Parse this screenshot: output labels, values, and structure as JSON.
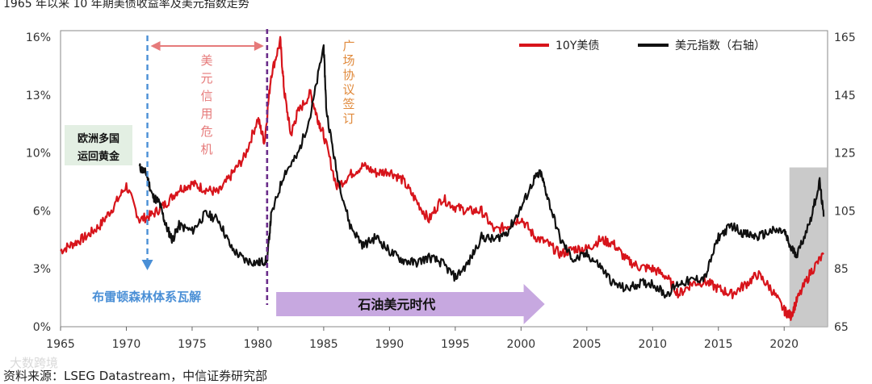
{
  "title": "1965 年以来 10 年期美债收益率及美元指数走势",
  "source": "资料来源：LSEG Datastream，中信证券研究部",
  "watermark": "大数跨境",
  "colors": {
    "us10y": "#d7141b",
    "dxy": "#111111",
    "blue": "#4a8fd6",
    "purple": "#6a2c8a",
    "pink": "#e67a7a",
    "orange": "#e08a3c",
    "arrow": "#c7a8e0",
    "shade": "#bdbdbd",
    "box": "#e3efe3"
  },
  "chart_data": {
    "type": "line",
    "x_ticks": [
      1965,
      1970,
      1975,
      1980,
      1985,
      1990,
      1995,
      2000,
      2005,
      2010,
      2015,
      2020
    ],
    "y_left": {
      "lim": [
        0,
        16
      ],
      "ticks": [
        "0%",
        "3%",
        "6%",
        "10%",
        "13%",
        "16%"
      ],
      "tick_values": [
        0,
        3.2,
        6.4,
        9.6,
        12.8,
        16
      ]
    },
    "y_right": {
      "lim": [
        65,
        165
      ],
      "ticks": [
        65,
        85,
        105,
        125,
        145,
        165
      ]
    },
    "legend": "top-right",
    "series": [
      {
        "name": "10Y美债",
        "axis": "left",
        "x": [
          1965,
          1966,
          1967,
          1968,
          1969,
          1970,
          1971,
          1972,
          1973,
          1974,
          1975,
          1976,
          1977,
          1978,
          1979,
          1980,
          1980.5,
          1981,
          1981.7,
          1982,
          1982.5,
          1983,
          1984,
          1984.5,
          1985,
          1986,
          1987,
          1988,
          1989,
          1990,
          1991,
          1992,
          1993,
          1994,
          1995,
          1996,
          1997,
          1998,
          1999,
          2000,
          2001,
          2002,
          2003,
          2004,
          2005,
          2006,
          2007,
          2008,
          2009,
          2010,
          2011,
          2012,
          2013,
          2014,
          2015,
          2016,
          2017,
          2018,
          2019,
          2020,
          2020.5,
          2021,
          2022,
          2023
        ],
        "y": [
          4.2,
          4.6,
          5.0,
          5.6,
          6.6,
          7.8,
          5.9,
          6.2,
          6.8,
          7.6,
          7.9,
          7.6,
          7.4,
          8.4,
          9.4,
          11.5,
          10.2,
          13.9,
          15.8,
          13.0,
          10.6,
          11.8,
          12.9,
          11.6,
          10.6,
          7.7,
          8.4,
          8.9,
          8.5,
          8.6,
          8.1,
          7.0,
          5.9,
          7.1,
          6.6,
          6.4,
          6.4,
          5.3,
          5.6,
          6.0,
          5.0,
          4.6,
          4.0,
          4.3,
          4.3,
          4.8,
          4.6,
          3.7,
          3.3,
          3.2,
          2.8,
          1.8,
          2.4,
          2.5,
          2.1,
          1.8,
          2.3,
          2.9,
          2.1,
          0.9,
          0.6,
          1.5,
          3.0,
          4.0
        ]
      },
      {
        "name": "美元指数（右轴）",
        "axis": "right",
        "x": [
          1971,
          1971.5,
          1972,
          1972.5,
          1973,
          1973.5,
          1974,
          1975,
          1976,
          1977,
          1978,
          1979,
          1980,
          1980.7,
          1981,
          1982,
          1983,
          1984,
          1985,
          1985.2,
          1986,
          1987,
          1988,
          1989,
          1990,
          1991,
          1992,
          1993,
          1994,
          1995,
          1996,
          1997,
          1998,
          1999,
          2000,
          2001,
          2001.5,
          2002,
          2003,
          2004,
          2005,
          2006,
          2007,
          2008,
          2009,
          2010,
          2011,
          2012,
          2013,
          2014,
          2015,
          2016,
          2017,
          2018,
          2019,
          2020,
          2020.5,
          2021,
          2022,
          2022.7,
          2023
        ],
        "y": [
          120,
          118,
          110,
          108,
          100,
          95,
          100,
          98,
          104,
          102,
          92,
          88,
          87,
          88,
          103,
          118,
          124,
          138,
          162,
          140,
          118,
          100,
          93,
          96,
          91,
          88,
          87,
          89,
          87,
          82,
          87,
          96,
          95,
          98,
          106,
          116,
          118,
          110,
          95,
          88,
          90,
          86,
          80,
          78,
          80,
          80,
          76,
          80,
          81,
          82,
          96,
          100,
          97,
          96,
          98,
          98,
          92,
          90,
          102,
          115,
          103
        ]
      }
    ],
    "annotations": [
      {
        "text": "欧洲多国\n运回黄金",
        "x": 1971,
        "y": 10.4
      },
      {
        "text": "美元信用危机",
        "x": 1976,
        "y": 15
      },
      {
        "text": "广场协议签订",
        "x": 1985.7,
        "y": 15.5
      },
      {
        "text": "布雷顿森林体系瓦解",
        "x": 1972,
        "y": 1.6
      },
      {
        "text": "石油美元时代",
        "x": 1985,
        "y": 1.2
      }
    ]
  }
}
